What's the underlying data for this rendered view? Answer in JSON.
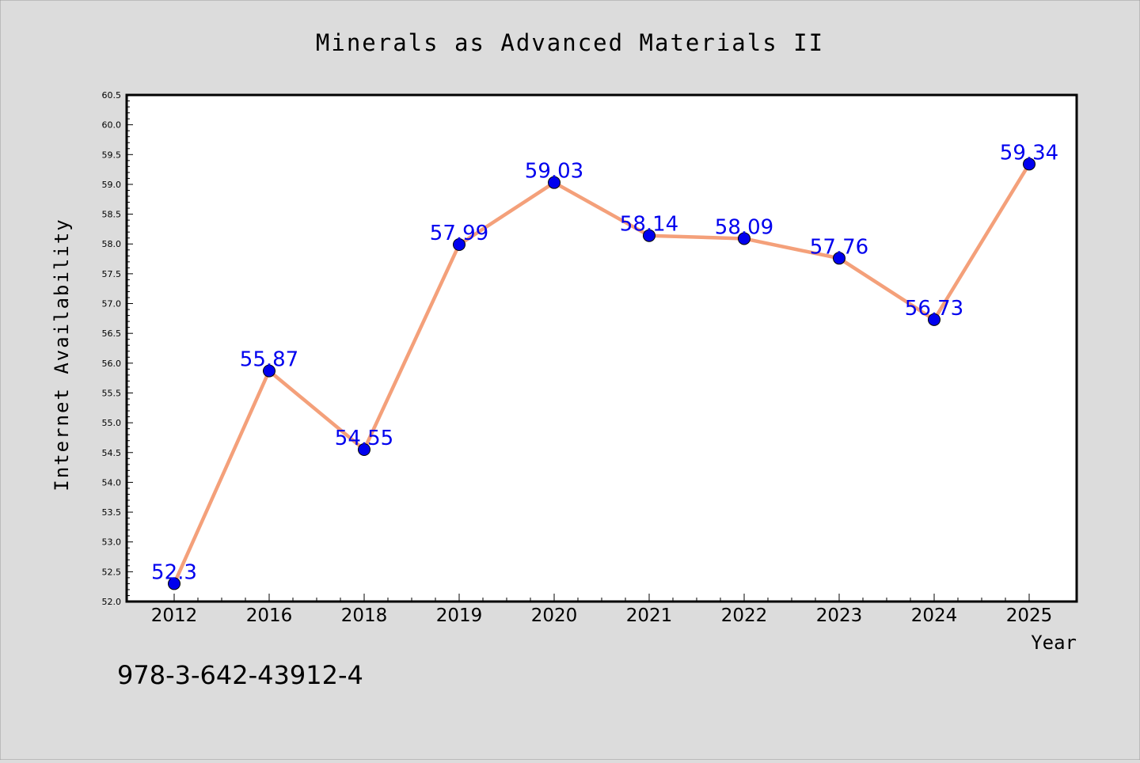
{
  "chart_data": {
    "type": "line",
    "title": "Minerals as Advanced Materials II",
    "xlabel": "Year",
    "ylabel": "Internet Availability",
    "categories": [
      "2012",
      "2016",
      "2018",
      "2019",
      "2020",
      "2021",
      "2022",
      "2023",
      "2024",
      "2025"
    ],
    "series": [
      {
        "values": [
          52.3,
          55.87,
          54.55,
          57.99,
          59.03,
          58.14,
          58.09,
          57.76,
          56.73,
          59.34
        ],
        "labels": [
          "52.3",
          "55.87",
          "54.55",
          "57.99",
          "59.03",
          "58.14",
          "58.09",
          "57.76",
          "56.73",
          "59.34"
        ],
        "line_color": "#f4a07a",
        "marker_color": "#0000ee",
        "label_color": "#0000ee"
      }
    ],
    "ylim": [
      52.0,
      60.5
    ],
    "ytick_step": 0.5,
    "grid": false,
    "legend": "none"
  },
  "annotation": "978-3-642-43912-4",
  "colors": {
    "background": "#dcdcdc",
    "plot_background": "#ffffff",
    "axis": "#000000"
  }
}
